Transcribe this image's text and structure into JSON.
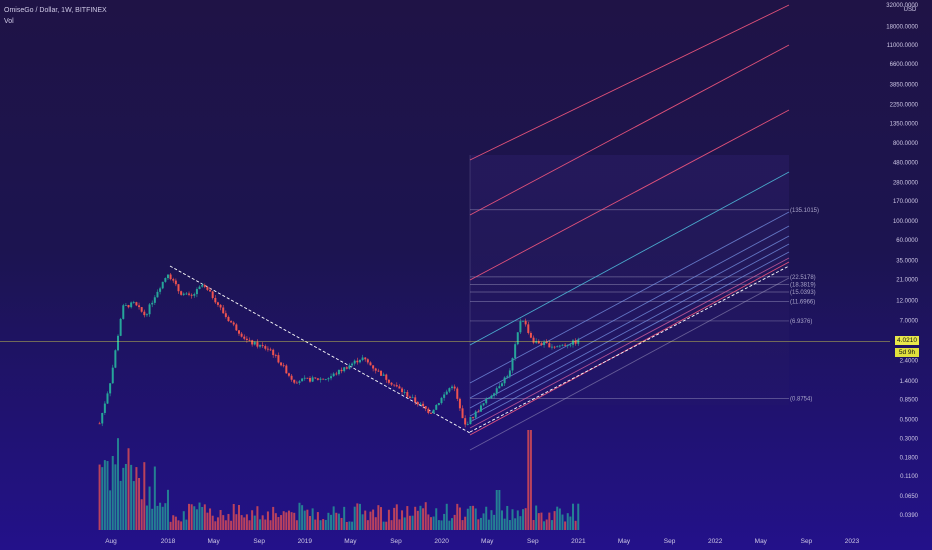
{
  "header": {
    "title": "OmiseGo / Dollar, 1W, BITFINEX",
    "vol_label": "Vol"
  },
  "price_axis": {
    "currency": "USD",
    "ticks": [
      "32000.0000",
      "18000.0000",
      "11000.0000",
      "6600.0000",
      "3850.0000",
      "2250.0000",
      "1350.0000",
      "800.0000",
      "480.0000",
      "280.0000",
      "170.0000",
      "100.0000",
      "60.0000",
      "35.0000",
      "21.0000",
      "12.0000",
      "7.0000",
      "2.4000",
      "1.4000",
      "0.8500",
      "0.5000",
      "0.3000",
      "0.1800",
      "0.1100",
      "0.0650",
      "0.0390"
    ],
    "current_price": "4.0210",
    "countdown": "5d 9h"
  },
  "time_axis": [
    "Aug",
    "2018",
    "May",
    "Sep",
    "2019",
    "May",
    "Sep",
    "2020",
    "May",
    "Sep",
    "2021",
    "May",
    "Sep",
    "2022",
    "May",
    "Sep",
    "2023"
  ],
  "fib_levels": [
    "(135.1015)",
    "(22.5178)",
    "(18.3819)",
    "(15.0393)",
    "(11.6966)",
    "(6.9376)",
    "(0.8754)"
  ],
  "colors": {
    "up": "#26a69a",
    "down": "#ef5350",
    "current_line": "#e9e84a",
    "red_channel": "#f4587e",
    "pink_channel": "#e86aa8",
    "teal_channel": "#4fb8d8",
    "blue_channel": "#7f9cf0",
    "fib_line": "#a9a4c9",
    "trendline": "#ffffff"
  },
  "chart_data": {
    "type": "line",
    "title": "OmiseGo / Dollar, 1W, BITFINEX",
    "scale": "log",
    "ylim": [
      0.03,
      32000
    ],
    "approx_weekly_close": [
      {
        "date": "2017-07",
        "close": 0.45
      },
      {
        "date": "2017-08",
        "close": 1.5
      },
      {
        "date": "2017-09",
        "close": 10
      },
      {
        "date": "2017-10",
        "close": 11
      },
      {
        "date": "2017-11",
        "close": 8
      },
      {
        "date": "2017-12",
        "close": 15
      },
      {
        "date": "2018-01",
        "close": 25
      },
      {
        "date": "2018-02",
        "close": 15
      },
      {
        "date": "2018-03",
        "close": 13
      },
      {
        "date": "2018-04",
        "close": 18
      },
      {
        "date": "2018-05",
        "close": 13
      },
      {
        "date": "2018-06",
        "close": 8
      },
      {
        "date": "2018-08",
        "close": 4
      },
      {
        "date": "2018-10",
        "close": 3.2
      },
      {
        "date": "2018-12",
        "close": 1.4
      },
      {
        "date": "2019-03",
        "close": 1.5
      },
      {
        "date": "2019-06",
        "close": 2.6
      },
      {
        "date": "2019-09",
        "close": 1.2
      },
      {
        "date": "2019-12",
        "close": 0.6
      },
      {
        "date": "2020-02",
        "close": 1.3
      },
      {
        "date": "2020-03",
        "close": 0.42
      },
      {
        "date": "2020-05",
        "close": 0.85
      },
      {
        "date": "2020-07",
        "close": 1.8
      },
      {
        "date": "2020-08",
        "close": 8
      },
      {
        "date": "2020-09",
        "close": 4
      },
      {
        "date": "2020-11",
        "close": 3.5
      },
      {
        "date": "2021-01",
        "close": 4.02
      }
    ],
    "volume_axis_note": "Vol",
    "fibonacci_levels": [
      135.1015,
      22.5178,
      18.3819,
      15.0393,
      11.6966,
      6.9376,
      0.8754
    ],
    "current_price": 4.021
  }
}
